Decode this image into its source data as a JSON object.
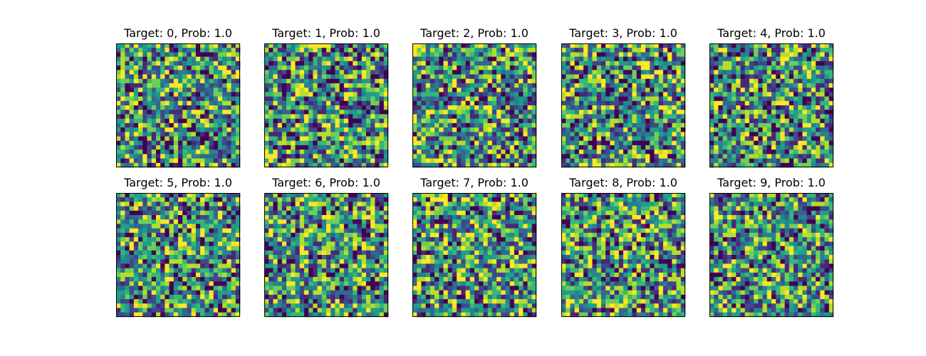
{
  "chart_data": [
    {
      "type": "heatmap",
      "title": "Target: 0, Prob: 1.0",
      "rows": 28,
      "cols": 28,
      "grid": false,
      "colormap": "viridis",
      "value_range": [
        0,
        1
      ]
    },
    {
      "type": "heatmap",
      "title": "Target: 1, Prob: 1.0",
      "rows": 28,
      "cols": 28,
      "grid": false,
      "colormap": "viridis",
      "value_range": [
        0,
        1
      ]
    },
    {
      "type": "heatmap",
      "title": "Target: 2, Prob: 1.0",
      "rows": 28,
      "cols": 28,
      "grid": false,
      "colormap": "viridis",
      "value_range": [
        0,
        1
      ]
    },
    {
      "type": "heatmap",
      "title": "Target: 3, Prob: 1.0",
      "rows": 28,
      "cols": 28,
      "grid": false,
      "colormap": "viridis",
      "value_range": [
        0,
        1
      ]
    },
    {
      "type": "heatmap",
      "title": "Target: 4, Prob: 1.0",
      "rows": 28,
      "cols": 28,
      "grid": false,
      "colormap": "viridis",
      "value_range": [
        0,
        1
      ]
    },
    {
      "type": "heatmap",
      "title": "Target: 5, Prob: 1.0",
      "rows": 28,
      "cols": 28,
      "grid": false,
      "colormap": "viridis",
      "value_range": [
        0,
        1
      ]
    },
    {
      "type": "heatmap",
      "title": "Target: 6, Prob: 1.0",
      "rows": 28,
      "cols": 28,
      "grid": false,
      "colormap": "viridis",
      "value_range": [
        0,
        1
      ]
    },
    {
      "type": "heatmap",
      "title": "Target: 7, Prob: 1.0",
      "rows": 28,
      "cols": 28,
      "grid": false,
      "colormap": "viridis",
      "value_range": [
        0,
        1
      ]
    },
    {
      "type": "heatmap",
      "title": "Target: 8, Prob: 1.0",
      "rows": 28,
      "cols": 28,
      "grid": false,
      "colormap": "viridis",
      "value_range": [
        0,
        1
      ]
    },
    {
      "type": "heatmap",
      "title": "Target: 9, Prob: 1.0",
      "rows": 28,
      "cols": 28,
      "grid": false,
      "colormap": "viridis",
      "value_range": [
        0,
        1
      ]
    }
  ],
  "colors": {
    "viridis_stops": [
      "#440154",
      "#482878",
      "#3e4989",
      "#31688e",
      "#26828e",
      "#1f9e89",
      "#35b779",
      "#6ece58",
      "#b5de2b",
      "#fde725"
    ],
    "frame": "#000000",
    "background": "#ffffff"
  }
}
